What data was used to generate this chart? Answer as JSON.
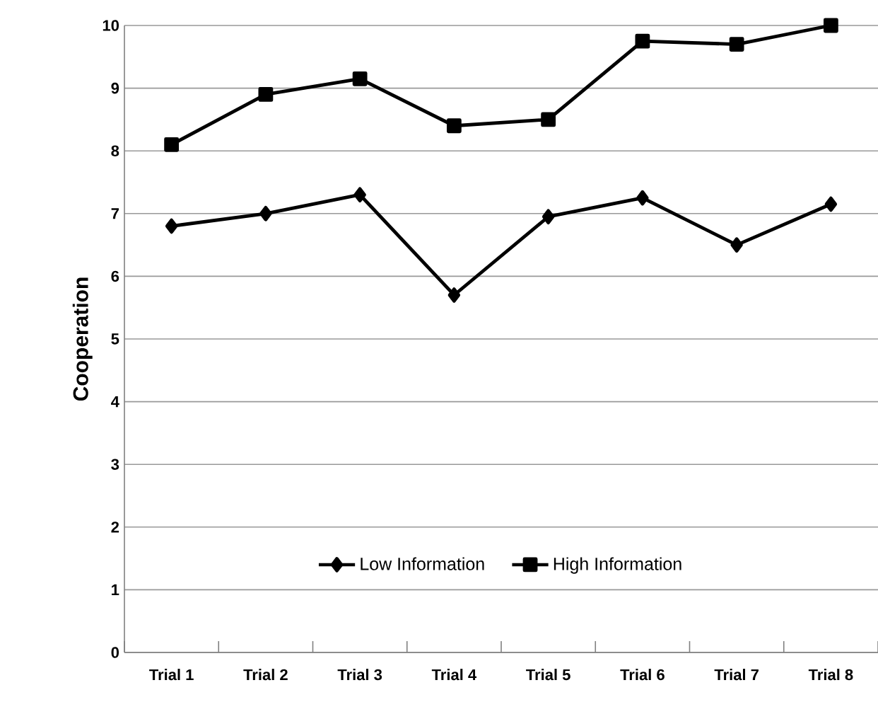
{
  "chart_data": {
    "type": "line",
    "ylabel": "Cooperation",
    "categories": [
      "Trial 1",
      "Trial 2",
      "Trial 3",
      "Trial 4",
      "Trial 5",
      "Trial 6",
      "Trial 7",
      "Trial 8"
    ],
    "series": [
      {
        "name": "Low Information",
        "color": "#000000",
        "marker": "diamond",
        "values": [
          6.8,
          7.0,
          7.3,
          5.7,
          6.95,
          7.25,
          6.5,
          7.15
        ]
      },
      {
        "name": "High Information",
        "color": "#000000",
        "marker": "square",
        "values": [
          8.1,
          8.9,
          9.15,
          8.4,
          8.5,
          9.75,
          9.7,
          10.0
        ]
      }
    ],
    "ylim": [
      0,
      10
    ],
    "yticks": [
      0,
      1,
      2,
      3,
      4,
      5,
      6,
      7,
      8,
      9,
      10
    ],
    "grid": "y",
    "legend": "bottom",
    "line_style": "solid"
  }
}
